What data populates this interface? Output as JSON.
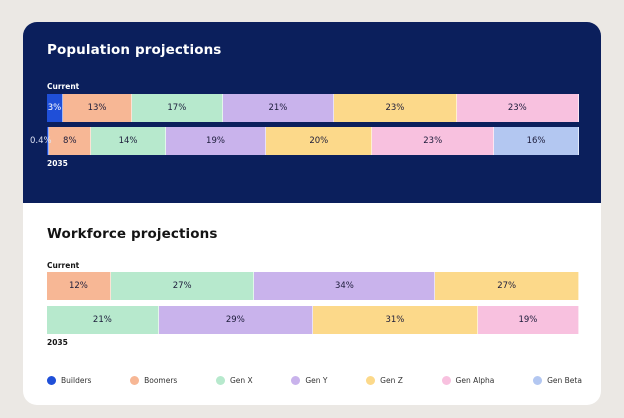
{
  "chart_data": [
    {
      "type": "stacked-bar",
      "title": "Population projections",
      "series_names": [
        "Builders",
        "Boomers",
        "Gen X",
        "Gen Y",
        "Gen Z",
        "Gen Alpha",
        "Gen Beta"
      ],
      "rows": [
        {
          "label": "Current",
          "values": [
            3,
            13,
            17,
            21,
            23,
            23,
            0
          ],
          "labels": [
            "3%",
            "13%",
            "17%",
            "21%",
            "23%",
            "23%",
            ""
          ]
        },
        {
          "label": "2035",
          "values": [
            0.4,
            8,
            14,
            19,
            20,
            23,
            16
          ],
          "labels": [
            "0.4%",
            "8%",
            "14%",
            "19%",
            "20%",
            "23%",
            "16%"
          ]
        }
      ]
    },
    {
      "type": "stacked-bar",
      "title": "Workforce projections",
      "series_names": [
        "Builders",
        "Boomers",
        "Gen X",
        "Gen Y",
        "Gen Z",
        "Gen Alpha",
        "Gen Beta"
      ],
      "rows": [
        {
          "label": "Current",
          "values": [
            0,
            12,
            27,
            34,
            27,
            0,
            0
          ],
          "labels": [
            "",
            "12%",
            "27%",
            "34%",
            "27%",
            "",
            ""
          ]
        },
        {
          "label": "2035",
          "values": [
            0,
            0,
            21,
            29,
            31,
            19,
            0
          ],
          "labels": [
            "",
            "",
            "21%",
            "29%",
            "31%",
            "19%",
            ""
          ]
        }
      ]
    }
  ],
  "legend": [
    {
      "name": "Builders",
      "color": "#1f4fd8"
    },
    {
      "name": "Boomers",
      "color": "#f7b795"
    },
    {
      "name": "Gen X",
      "color": "#b7e9cd"
    },
    {
      "name": "Gen Y",
      "color": "#c9b3ec"
    },
    {
      "name": "Gen Z",
      "color": "#fcd98a"
    },
    {
      "name": "Gen Alpha",
      "color": "#f8c1df"
    },
    {
      "name": "Gen Beta",
      "color": "#b3c7f1"
    }
  ]
}
